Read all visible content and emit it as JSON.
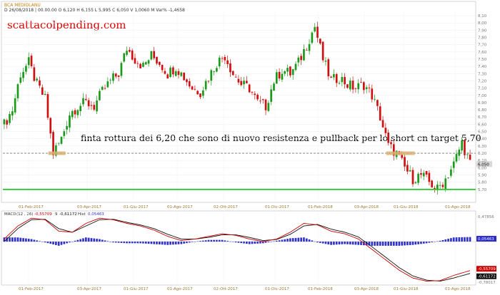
{
  "header": {
    "instrument": "BCA MEDIOLANU",
    "info_line": "D 26/08/2018 | 00.00.00  O 6,120  H 6,155  L 5,995  C 6,050  V 1,0060 M  Var% -1,4658"
  },
  "watermark": "scattacolpending.com",
  "annotation": "finta rottura dei 6,20 che sono di nuovo resistenza e pullback per lo short cn target 5,70",
  "colors": {
    "bull": "#1a9a1a",
    "bear": "#d01010",
    "support": "#22cc22",
    "macd_line": "#cc0000",
    "signal_line": "#111111",
    "histogram": "#3030cc",
    "box_fill": "#d8b070",
    "price_badge": "#d8d8d8",
    "macd_badge": "#2a2acc",
    "signal_badge_fill": "#cc0000",
    "signal_badge2_fill": "#111111"
  },
  "chart_data": [
    {
      "type": "candlestick",
      "title": "BCA MEDIOLANU",
      "ylim": [
        5.6,
        8.1
      ],
      "y_ticks": [
        "8,10",
        "8,00",
        "7,90",
        "7,80",
        "7,70",
        "7,60",
        "7,50",
        "7,40",
        "7,30",
        "7,20",
        "7,10",
        "7,00",
        "6,90",
        "6,80",
        "6,70",
        "6,60",
        "6,50",
        "6,40",
        "6,30",
        "6,20",
        "6,10",
        "6,00",
        "5,90",
        "5,80",
        "5,70"
      ],
      "x_ticks": [
        "01-Feb-2017",
        "03-Apr-2017",
        "01-Giu-2017",
        "01-Ago-2017",
        "02-Ott-2017",
        "01-Dic-2017",
        "01-Feb-2018",
        "03-Apr-2018",
        "01-Giu-2018",
        "01-Ago-2018"
      ],
      "last_price": "6,050",
      "resistance": 6.2,
      "support": 5.7,
      "price_path": [
        [
          0,
          6.6
        ],
        [
          3,
          6.8
        ],
        [
          6,
          7.3
        ],
        [
          9,
          7.45
        ],
        [
          12,
          7.15
        ],
        [
          15,
          6.95
        ],
        [
          18,
          6.2
        ],
        [
          21,
          6.4
        ],
        [
          24,
          6.75
        ],
        [
          27,
          6.85
        ],
        [
          30,
          6.9
        ],
        [
          33,
          6.85
        ],
        [
          36,
          7.05
        ],
        [
          39,
          7.2
        ],
        [
          42,
          7.3
        ],
        [
          45,
          7.65
        ],
        [
          48,
          7.5
        ],
        [
          51,
          7.4
        ],
        [
          54,
          7.55
        ],
        [
          57,
          7.45
        ],
        [
          60,
          7.3
        ],
        [
          63,
          7.4
        ],
        [
          66,
          7.25
        ],
        [
          69,
          7.1
        ],
        [
          72,
          7.05
        ],
        [
          75,
          7.25
        ],
        [
          78,
          7.45
        ],
        [
          81,
          7.55
        ],
        [
          84,
          7.3
        ],
        [
          87,
          7.15
        ],
        [
          90,
          7.1
        ],
        [
          93,
          6.9
        ],
        [
          96,
          6.85
        ],
        [
          99,
          7.2
        ],
        [
          102,
          7.35
        ],
        [
          105,
          7.3
        ],
        [
          108,
          7.45
        ],
        [
          111,
          7.7
        ],
        [
          114,
          7.95
        ],
        [
          117,
          7.5
        ],
        [
          120,
          7.2
        ],
        [
          123,
          7.25
        ],
        [
          126,
          7.15
        ],
        [
          129,
          7.1
        ],
        [
          132,
          7.15
        ],
        [
          135,
          7.0
        ],
        [
          138,
          6.7
        ],
        [
          141,
          6.3
        ],
        [
          144,
          6.2
        ],
        [
          147,
          6.0
        ],
        [
          150,
          5.85
        ],
        [
          153,
          5.9
        ],
        [
          156,
          5.8
        ],
        [
          159,
          5.7
        ],
        [
          162,
          5.85
        ],
        [
          165,
          6.05
        ],
        [
          168,
          6.35
        ],
        [
          171,
          6.05
        ]
      ]
    },
    {
      "type": "line",
      "title": "MACD (12, 26)",
      "legend": {
        "name": "MACD",
        "params": "(12 , 26)",
        "macd_value": "-0,55709",
        "signal_label": "9",
        "signal_value": "-0,61172",
        "hist_label": "Hist",
        "hist_value": "0,05463"
      },
      "ylim": [
        -0.78,
        0.48
      ],
      "y_ticks": [
        "0,47856",
        "0,05463",
        "-0,55709",
        "-0,61172",
        "-0,78017"
      ],
      "x_ticks": [
        "01-Feb-2017",
        "03-Apr-2017",
        "01-Giu-2017",
        "01-Ago-2017",
        "02-Ott-2017",
        "01-Dic-2017",
        "01-Feb-2018",
        "03-Apr-2018",
        "01-Giu-2018",
        "01-Ago-2018"
      ],
      "macd": [
        [
          0,
          0.05
        ],
        [
          5,
          0.3
        ],
        [
          10,
          0.45
        ],
        [
          15,
          0.42
        ],
        [
          20,
          0.2
        ],
        [
          25,
          0.18
        ],
        [
          30,
          0.35
        ],
        [
          35,
          0.45
        ],
        [
          40,
          0.42
        ],
        [
          45,
          0.35
        ],
        [
          50,
          0.3
        ],
        [
          55,
          0.22
        ],
        [
          60,
          0.1
        ],
        [
          65,
          0.02
        ],
        [
          70,
          0.05
        ],
        [
          75,
          0.1
        ],
        [
          80,
          0.15
        ],
        [
          85,
          0.12
        ],
        [
          90,
          0.05
        ],
        [
          95,
          0.0
        ],
        [
          100,
          0.05
        ],
        [
          105,
          0.18
        ],
        [
          110,
          0.35
        ],
        [
          115,
          0.32
        ],
        [
          120,
          0.2
        ],
        [
          125,
          0.15
        ],
        [
          130,
          0.05
        ],
        [
          135,
          -0.15
        ],
        [
          140,
          -0.35
        ],
        [
          145,
          -0.55
        ],
        [
          150,
          -0.7
        ],
        [
          155,
          -0.76
        ],
        [
          160,
          -0.75
        ],
        [
          165,
          -0.65
        ],
        [
          171,
          -0.557
        ]
      ],
      "signal": [
        [
          0,
          0.0
        ],
        [
          5,
          0.25
        ],
        [
          10,
          0.42
        ],
        [
          15,
          0.43
        ],
        [
          20,
          0.25
        ],
        [
          25,
          0.18
        ],
        [
          30,
          0.3
        ],
        [
          35,
          0.42
        ],
        [
          40,
          0.43
        ],
        [
          45,
          0.37
        ],
        [
          50,
          0.32
        ],
        [
          55,
          0.25
        ],
        [
          60,
          0.14
        ],
        [
          65,
          0.05
        ],
        [
          70,
          0.05
        ],
        [
          75,
          0.08
        ],
        [
          80,
          0.13
        ],
        [
          85,
          0.13
        ],
        [
          90,
          0.08
        ],
        [
          95,
          0.02
        ],
        [
          100,
          0.04
        ],
        [
          105,
          0.14
        ],
        [
          110,
          0.3
        ],
        [
          115,
          0.33
        ],
        [
          120,
          0.24
        ],
        [
          125,
          0.18
        ],
        [
          130,
          0.09
        ],
        [
          135,
          -0.1
        ],
        [
          140,
          -0.3
        ],
        [
          145,
          -0.5
        ],
        [
          150,
          -0.66
        ],
        [
          155,
          -0.74
        ],
        [
          160,
          -0.76
        ],
        [
          165,
          -0.7
        ],
        [
          171,
          -0.612
        ]
      ]
    }
  ]
}
